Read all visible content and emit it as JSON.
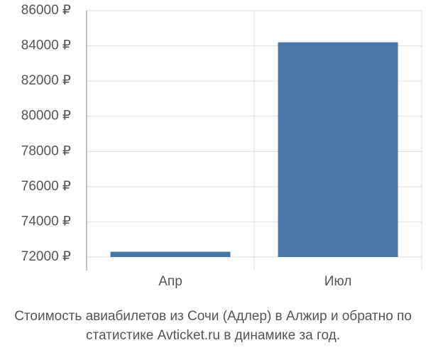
{
  "chart_data": {
    "type": "bar",
    "title": "Стоимость авиабилетов из Сочи (Адлер) в Алжир и обратно по статистике Avticket.ru в динамике за год.",
    "categories": [
      "Апр",
      "Июл"
    ],
    "values": [
      72300,
      84200
    ],
    "color": "#4a76a5",
    "ylim": [
      72000,
      86000
    ],
    "yticks": [
      {
        "value": 72000,
        "label": "72000 ₽"
      },
      {
        "value": 74000,
        "label": "74000 ₽"
      },
      {
        "value": 76000,
        "label": "76000 ₽"
      },
      {
        "value": 78000,
        "label": "78000 ₽"
      },
      {
        "value": 80000,
        "label": "80000 ₽"
      },
      {
        "value": 82000,
        "label": "82000 ₽"
      },
      {
        "value": 84000,
        "label": "84000 ₽"
      },
      {
        "value": 86000,
        "label": "86000 ₽"
      }
    ],
    "grid": true
  }
}
